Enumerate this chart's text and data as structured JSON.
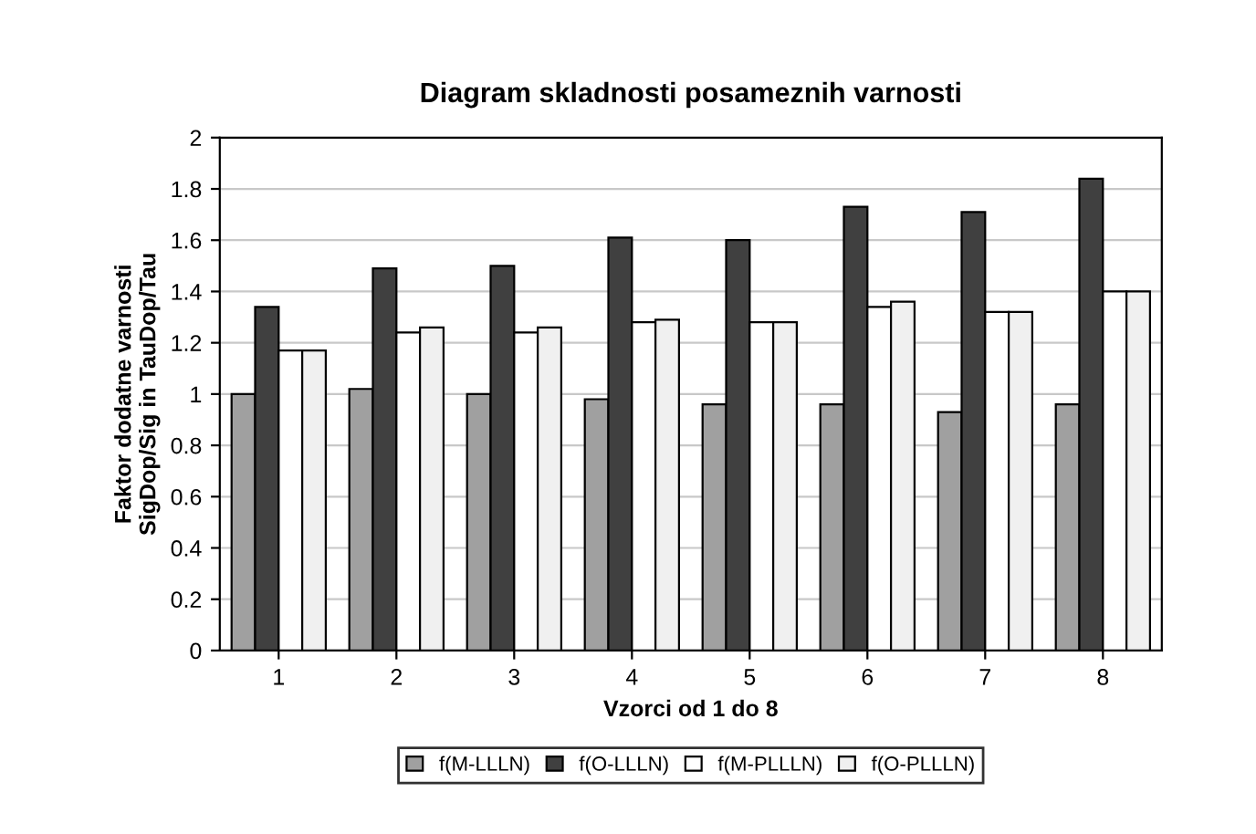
{
  "chart_data": {
    "type": "bar",
    "title": "Diagram skladnosti posameznih varnosti",
    "xlabel": "Vzorci od 1 do 8",
    "ylabel": "Faktor dodatne varnosti\nSigDop/Sig in TauDop/Tau",
    "categories": [
      "1",
      "2",
      "3",
      "4",
      "5",
      "6",
      "7",
      "8"
    ],
    "series": [
      {
        "name": "f(M-LLLN)",
        "color": "#a0a0a0",
        "values": [
          1.0,
          1.02,
          1.0,
          0.98,
          0.96,
          0.96,
          0.93,
          0.96
        ]
      },
      {
        "name": "f(O-LLLN)",
        "color": "#404040",
        "values": [
          1.34,
          1.49,
          1.5,
          1.61,
          1.6,
          1.73,
          1.71,
          1.84
        ]
      },
      {
        "name": "f(M-PLLLN)",
        "color": "#ffffff",
        "values": [
          1.17,
          1.24,
          1.24,
          1.28,
          1.28,
          1.34,
          1.32,
          1.4
        ]
      },
      {
        "name": "f(O-PLLLN)",
        "color": "#f0f0f0",
        "values": [
          1.17,
          1.26,
          1.26,
          1.29,
          1.28,
          1.36,
          1.32,
          1.4
        ]
      }
    ],
    "ylim": [
      0,
      2
    ],
    "yticks": [
      0,
      0.2,
      0.4,
      0.6,
      0.8,
      1,
      1.2,
      1.4,
      1.6,
      1.8,
      2
    ],
    "grid": "y",
    "legend": "bottom"
  }
}
